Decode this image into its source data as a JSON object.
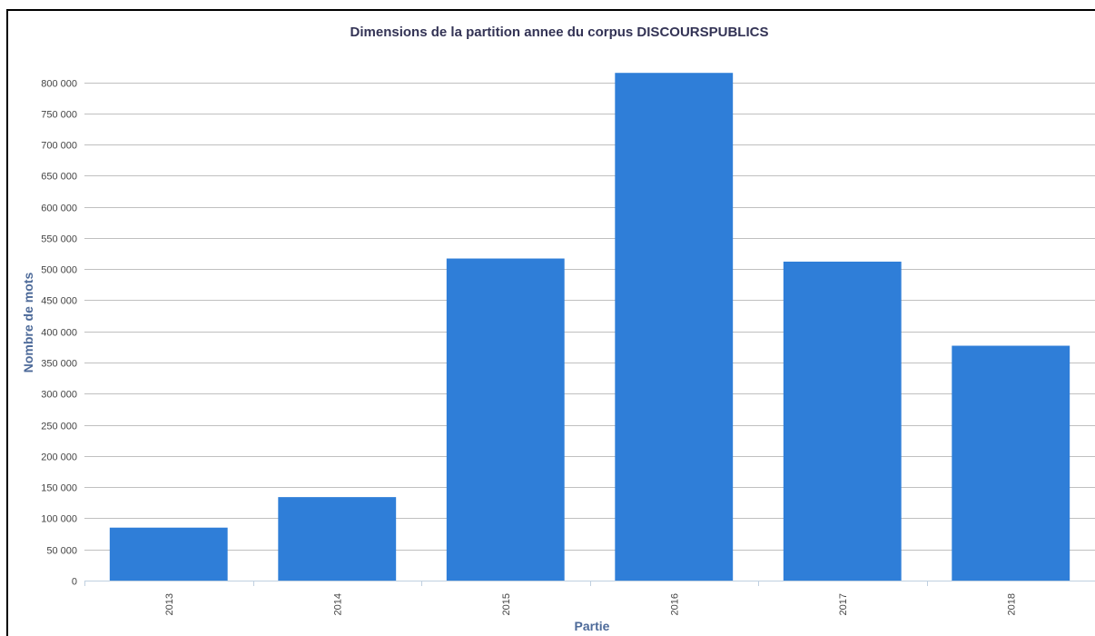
{
  "chart_data": {
    "type": "bar",
    "title": "Dimensions de la partition annee du corpus DISCOURSPUBLICS",
    "xlabel": "Partie",
    "ylabel": "Nombre de mots",
    "categories": [
      "2013",
      "2014",
      "2015",
      "2016",
      "2017",
      "2018"
    ],
    "values": [
      85000,
      134000,
      517000,
      815000,
      512000,
      377000
    ],
    "ylim": [
      0,
      850000
    ],
    "yticks": [
      0,
      50000,
      100000,
      150000,
      200000,
      250000,
      300000,
      350000,
      400000,
      450000,
      500000,
      550000,
      600000,
      650000,
      700000,
      750000,
      800000
    ],
    "ytick_labels": [
      "0",
      "50 000",
      "100 000",
      "150 000",
      "200 000",
      "250 000",
      "300 000",
      "350 000",
      "400 000",
      "450 000",
      "500 000",
      "550 000",
      "600 000",
      "650 000",
      "700 000",
      "750 000",
      "800 000"
    ],
    "grid": true,
    "legend": "none",
    "bar_color": "#2f7ed8",
    "grid_color": "#c0c0c0",
    "axis_color": "#c0d0e0"
  }
}
